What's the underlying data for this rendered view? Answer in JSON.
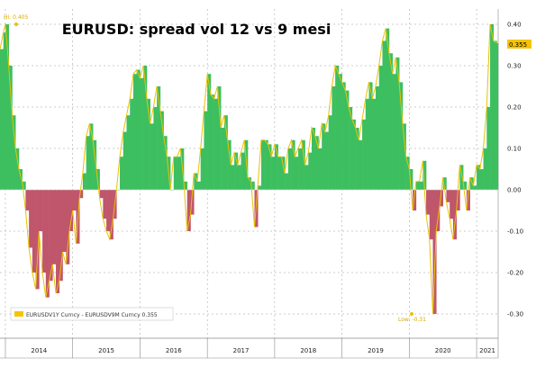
{
  "chart_data": {
    "type": "area",
    "title": "EURUSD: spread vol 12 vs 9 mesi",
    "xlabel": "",
    "ylabel": "",
    "ylim": [
      -0.3,
      0.4
    ],
    "ytick_labels": [
      "0.40",
      "0.30",
      "0.20",
      "0.10",
      "0.00",
      "-0.10",
      "-0.20",
      "-0.30"
    ],
    "ytick_values": [
      0.4,
      0.3,
      0.2,
      0.1,
      0.0,
      -0.1,
      -0.2,
      -0.3
    ],
    "xtick_labels": [
      "2014",
      "2015",
      "2016",
      "2017",
      "2018",
      "2019",
      "2020",
      "2021"
    ],
    "xlim": [
      2013.92,
      2021.32
    ],
    "x": [
      2013.92,
      2013.97,
      2014.0,
      2014.05,
      2014.1,
      2014.15,
      2014.2,
      2014.25,
      2014.3,
      2014.35,
      2014.4,
      2014.45,
      2014.5,
      2014.55,
      2014.6,
      2014.65,
      2014.7,
      2014.75,
      2014.8,
      2014.85,
      2014.9,
      2014.95,
      2015.0,
      2015.05,
      2015.1,
      2015.15,
      2015.2,
      2015.25,
      2015.3,
      2015.35,
      2015.4,
      2015.45,
      2015.5,
      2015.55,
      2015.6,
      2015.65,
      2015.7,
      2015.75,
      2015.8,
      2015.85,
      2015.9,
      2015.95,
      2016.0,
      2016.05,
      2016.1,
      2016.15,
      2016.2,
      2016.25,
      2016.3,
      2016.35,
      2016.4,
      2016.45,
      2016.5,
      2016.55,
      2016.6,
      2016.65,
      2016.7,
      2016.75,
      2016.8,
      2016.85,
      2016.9,
      2016.95,
      2017.0,
      2017.05,
      2017.1,
      2017.15,
      2017.2,
      2017.25,
      2017.3,
      2017.35,
      2017.4,
      2017.45,
      2017.5,
      2017.55,
      2017.6,
      2017.65,
      2017.7,
      2017.75,
      2017.8,
      2017.85,
      2017.9,
      2017.95,
      2018.0,
      2018.05,
      2018.1,
      2018.15,
      2018.2,
      2018.25,
      2018.3,
      2018.35,
      2018.4,
      2018.45,
      2018.5,
      2018.55,
      2018.6,
      2018.65,
      2018.7,
      2018.75,
      2018.8,
      2018.85,
      2018.9,
      2018.95,
      2019.0,
      2019.05,
      2019.1,
      2019.15,
      2019.2,
      2019.25,
      2019.3,
      2019.35,
      2019.4,
      2019.45,
      2019.5,
      2019.55,
      2019.6,
      2019.65,
      2019.7,
      2019.75,
      2019.8,
      2019.85,
      2019.9,
      2019.95,
      2020.0,
      2020.05,
      2020.1,
      2020.15,
      2020.2,
      2020.25,
      2020.3,
      2020.35,
      2020.4,
      2020.45,
      2020.5,
      2020.55,
      2020.6,
      2020.65,
      2020.7,
      2020.75,
      2020.8,
      2020.85,
      2020.9,
      2020.95,
      2021.0,
      2021.05,
      2021.1,
      2021.15,
      2021.2,
      2021.25,
      2021.3
    ],
    "series": [
      {
        "name": "EURUSDV1Y Curncy - EURUSDV9M Curncy",
        "values": [
          0.34,
          0.38,
          0.4,
          0.3,
          0.18,
          0.1,
          0.05,
          0.02,
          -0.05,
          -0.14,
          -0.2,
          -0.24,
          -0.1,
          -0.2,
          -0.26,
          -0.22,
          -0.18,
          -0.25,
          -0.22,
          -0.15,
          -0.18,
          -0.1,
          -0.05,
          -0.13,
          -0.02,
          0.04,
          0.13,
          0.16,
          0.12,
          0.05,
          -0.02,
          -0.07,
          -0.1,
          -0.12,
          -0.07,
          0.0,
          0.08,
          0.14,
          0.18,
          0.22,
          0.28,
          0.29,
          0.27,
          0.3,
          0.22,
          0.16,
          0.2,
          0.25,
          0.19,
          0.13,
          0.08,
          0.0,
          0.08,
          0.08,
          0.1,
          0.02,
          -0.1,
          -0.06,
          0.04,
          0.02,
          0.1,
          0.19,
          0.28,
          0.23,
          0.22,
          0.25,
          0.15,
          0.18,
          0.12,
          0.06,
          0.09,
          0.06,
          0.09,
          0.12,
          0.03,
          0.02,
          -0.09,
          0.01,
          0.12,
          0.12,
          0.11,
          0.08,
          0.11,
          0.08,
          0.08,
          0.04,
          0.1,
          0.12,
          0.08,
          0.1,
          0.12,
          0.06,
          0.09,
          0.15,
          0.13,
          0.1,
          0.16,
          0.14,
          0.18,
          0.25,
          0.3,
          0.28,
          0.26,
          0.24,
          0.2,
          0.17,
          0.15,
          0.12,
          0.17,
          0.22,
          0.26,
          0.22,
          0.25,
          0.3,
          0.36,
          0.39,
          0.33,
          0.28,
          0.32,
          0.26,
          0.16,
          0.08,
          0.05,
          -0.05,
          0.02,
          0.02,
          0.07,
          -0.06,
          -0.12,
          -0.3,
          -0.1,
          -0.04,
          0.03,
          -0.03,
          -0.07,
          -0.12,
          -0.05,
          0.06,
          0.02,
          -0.05,
          0.03,
          0.01,
          0.06,
          0.05,
          0.1,
          0.2,
          0.4,
          0.36,
          0.355
        ]
      }
    ],
    "annotations": {
      "high_label": "Hi: 0.405",
      "low_label": "Low: -0.31",
      "last_value": "0.355",
      "legend_label": "EURUSDV1Y Curncy - EURUSDV9M Curncy 0.355"
    },
    "colors": {
      "positive": "#3dbf60",
      "negative": "#c0566b",
      "edge": "#e8c200",
      "last_box": "#f5c400",
      "grid": "#9a9a9a"
    },
    "grid": true,
    "legend_position": "bottom-left"
  }
}
